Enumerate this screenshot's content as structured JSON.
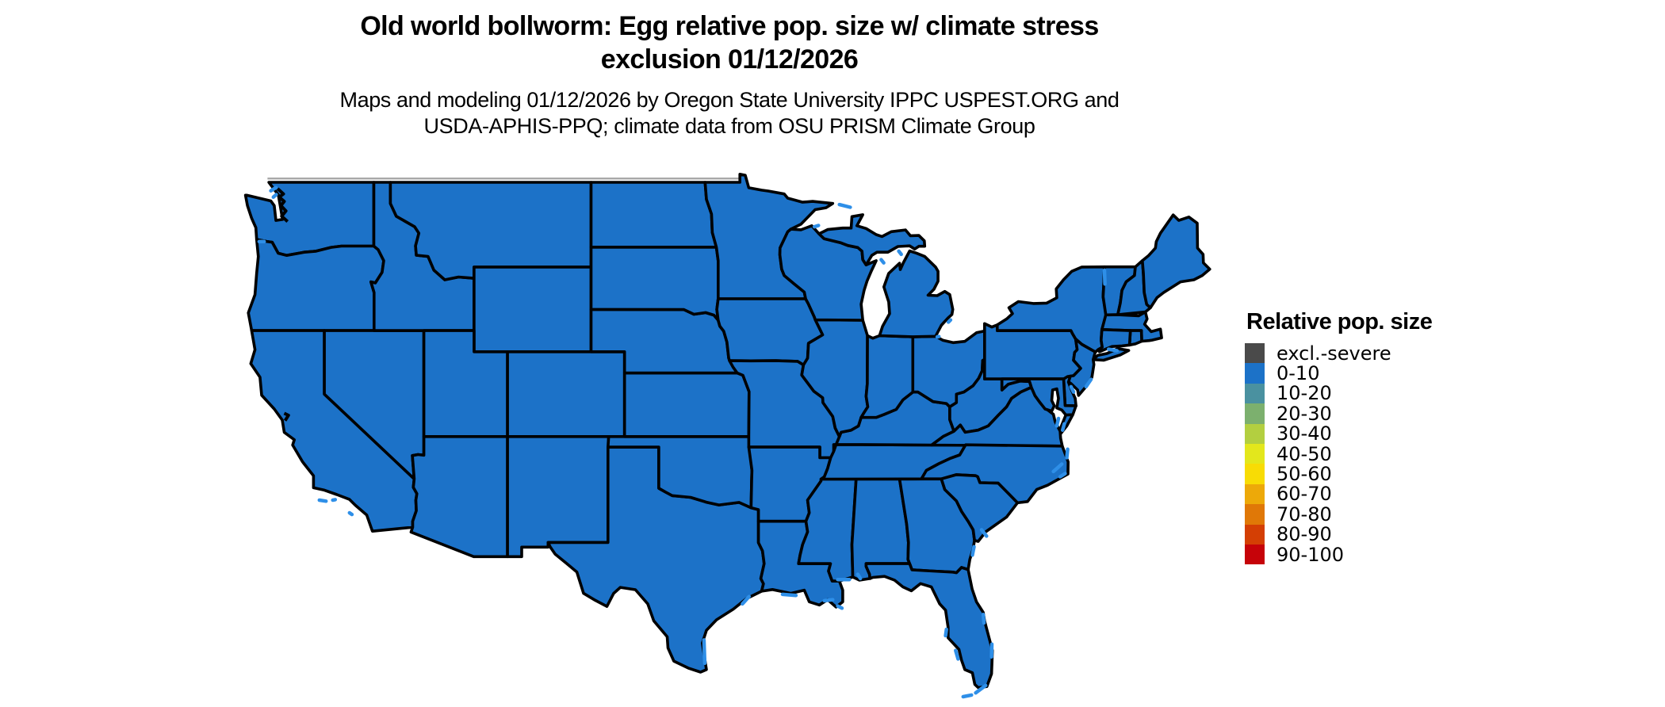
{
  "title": {
    "line1": "Old world bollworm: Egg relative pop. size w/ climate stress",
    "line2": "exclusion 01/12/2026"
  },
  "subtitle": {
    "line1": "Maps and modeling 01/12/2026 by Oregon State University IPPC USPEST.ORG and",
    "line2": "USDA-APHIS-PPQ; climate data from OSU PRISM Climate Group"
  },
  "legend": {
    "title": "Relative pop. size",
    "items": [
      {
        "label": "excl.-severe",
        "color": "#4A4A4A"
      },
      {
        "label": "0-10",
        "color": "#1C72C8"
      },
      {
        "label": "10-20",
        "color": "#4A91A0"
      },
      {
        "label": "20-30",
        "color": "#7CB06E"
      },
      {
        "label": "30-40",
        "color": "#B3CF40"
      },
      {
        "label": "40-50",
        "color": "#E3E71C"
      },
      {
        "label": "50-60",
        "color": "#F8DC05"
      },
      {
        "label": "60-70",
        "color": "#EDA909"
      },
      {
        "label": "70-80",
        "color": "#E07807"
      },
      {
        "label": "80-90",
        "color": "#D43F04"
      },
      {
        "label": "90-100",
        "color": "#C60309"
      }
    ]
  },
  "map": {
    "uniform_value": "0-10",
    "state_fill": "#1C72C8",
    "border_color": "#000000",
    "water_accent": "#2E8FE8",
    "canada_border_color": "#A8A8A8",
    "background": "#FFFFFF"
  }
}
